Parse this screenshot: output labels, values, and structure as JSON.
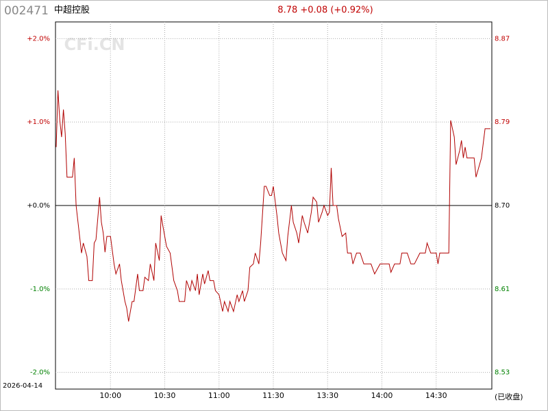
{
  "chart_data": {
    "type": "line",
    "code": "002471",
    "name": "中超控股",
    "quote": "8.78 +0.08 (+0.92%)",
    "watermark": "CFi.CN",
    "date": "2026-04-14",
    "status": "(已收盘)",
    "xlim": [
      0,
      240
    ],
    "xticks": [
      {
        "value": 30,
        "label": "10:00"
      },
      {
        "value": 60,
        "label": "10:30"
      },
      {
        "value": 90,
        "label": "11:00"
      },
      {
        "value": 120,
        "label": "11:30"
      },
      {
        "value": 150,
        "label": "13:30"
      },
      {
        "value": 180,
        "label": "14:00"
      },
      {
        "value": 210,
        "label": "14:30"
      }
    ],
    "ylim": [
      -2.2,
      2.2
    ],
    "yticks": [
      {
        "value": 2,
        "label": "+2.0%"
      },
      {
        "value": 1,
        "label": "+1.0%"
      },
      {
        "value": 0,
        "label": "+0.0%"
      },
      {
        "value": -1,
        "label": "-1.0%"
      },
      {
        "value": -2,
        "label": "-2.0%"
      }
    ],
    "y2lim": [
      8.5086,
      8.8914
    ],
    "y2ticks": [
      {
        "value": 8.874,
        "label": "8.87"
      },
      {
        "value": 8.787,
        "label": "8.79"
      },
      {
        "value": 8.7,
        "label": "8.70"
      },
      {
        "value": 8.613,
        "label": "8.61"
      },
      {
        "value": 8.526,
        "label": "8.53"
      }
    ],
    "grid": true,
    "up_color": "#c00000",
    "down_color": "#008000",
    "flat_color": "#000000",
    "series": [
      {
        "name": "中超控股",
        "color": "#b00000",
        "x": [
          0,
          1,
          2,
          3,
          4,
          5,
          6,
          9,
          10,
          11,
          14,
          15,
          17,
          18,
          20,
          21,
          22,
          24,
          25,
          26,
          27,
          28,
          30,
          32,
          33,
          35,
          36,
          38,
          39,
          40,
          42,
          43,
          45,
          46,
          48,
          49,
          51,
          52,
          54,
          55,
          57,
          58,
          59,
          61,
          63,
          65,
          67,
          68,
          71,
          72,
          74,
          75,
          77,
          78,
          79,
          81,
          82,
          84,
          85,
          87,
          88,
          90,
          92,
          93,
          95,
          96,
          98,
          100,
          101,
          103,
          104,
          106,
          107,
          109,
          110,
          112,
          113,
          115,
          116,
          118,
          119,
          120,
          122,
          123,
          125,
          127,
          128,
          130,
          131,
          133,
          134,
          136,
          137,
          139,
          141,
          142,
          144,
          145,
          147,
          148,
          150,
          151,
          152,
          153,
          155,
          156,
          158,
          160,
          161,
          163,
          164,
          166,
          168,
          170,
          174,
          176,
          179,
          182,
          184,
          185,
          187,
          190,
          191,
          194,
          196,
          198,
          201,
          204,
          205,
          207,
          210,
          211,
          212,
          216,
          217,
          218,
          220,
          221,
          223,
          224,
          225,
          226,
          227,
          231,
          232,
          235,
          237,
          240
        ],
        "values": [
          0.7,
          1.38,
          1.02,
          0.82,
          1.15,
          0.86,
          0.34,
          0.34,
          0.57,
          0,
          -0.57,
          -0.45,
          -0.61,
          -0.9,
          -0.9,
          -0.45,
          -0.41,
          0.1,
          -0.2,
          -0.33,
          -0.56,
          -0.37,
          -0.37,
          -0.7,
          -0.82,
          -0.7,
          -0.9,
          -1.15,
          -1.23,
          -1.39,
          -1.15,
          -1.15,
          -0.82,
          -1.02,
          -1.02,
          -0.86,
          -0.9,
          -0.7,
          -0.9,
          -0.45,
          -0.66,
          -0.12,
          -0.25,
          -0.49,
          -0.57,
          -0.9,
          -1.02,
          -1.15,
          -1.15,
          -0.9,
          -1.02,
          -0.9,
          -1.02,
          -0.82,
          -1.07,
          -0.82,
          -0.94,
          -0.78,
          -0.9,
          -0.9,
          -1.02,
          -1.07,
          -1.27,
          -1.15,
          -1.27,
          -1.15,
          -1.27,
          -1.07,
          -1.15,
          -1.02,
          -1.15,
          -1.02,
          -0.74,
          -0.7,
          -0.57,
          -0.7,
          -0.45,
          0.23,
          0.23,
          0.12,
          0.12,
          0.23,
          -0.12,
          -0.33,
          -0.57,
          -0.66,
          -0.37,
          0,
          -0.2,
          -0.33,
          -0.45,
          -0.12,
          -0.2,
          -0.33,
          -0.08,
          0.1,
          0.04,
          -0.2,
          -0.08,
          0,
          -0.12,
          -0.08,
          0.45,
          0,
          0,
          -0.16,
          -0.37,
          -0.33,
          -0.57,
          -0.57,
          -0.7,
          -0.57,
          -0.57,
          -0.7,
          -0.7,
          -0.82,
          -0.7,
          -0.7,
          -0.7,
          -0.8,
          -0.7,
          -0.7,
          -0.57,
          -0.57,
          -0.7,
          -0.7,
          -0.57,
          -0.57,
          -0.45,
          -0.57,
          -0.57,
          -0.7,
          -0.57,
          -0.57,
          -0.57,
          1.02,
          0.82,
          0.49,
          0.66,
          0.78,
          0.57,
          0.7,
          0.57,
          0.57,
          0.34,
          0.57,
          0.92,
          0.92
        ]
      }
    ]
  }
}
